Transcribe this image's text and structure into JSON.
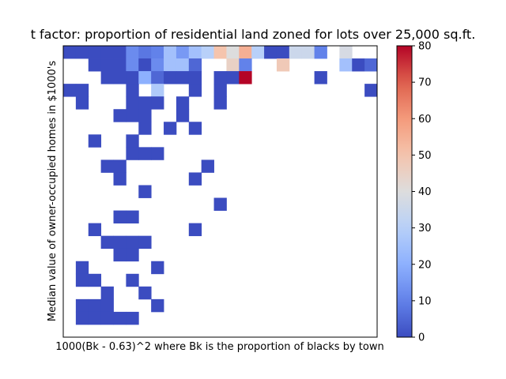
{
  "chart_data": {
    "type": "heatmap",
    "title": "t factor: proportion of residential land zoned for lots over 25,000 sq.ft.",
    "xlabel": "1000(Bk - 0.63)^2 where Bk is the proportion of blacks by town",
    "ylabel": "Median value of owner-occupied homes in $1000's",
    "n_cols": 25,
    "n_rows": 23,
    "vmin": 0,
    "vmax": 80,
    "colormap": "coolwarm",
    "colorbar_ticks": [
      "0",
      "10",
      "20",
      "30",
      "40",
      "50",
      "60",
      "70",
      "80"
    ],
    "cells": [
      [
        0,
        0,
        0
      ],
      [
        0,
        1,
        0
      ],
      [
        0,
        2,
        0
      ],
      [
        0,
        3,
        0
      ],
      [
        0,
        4,
        0
      ],
      [
        0,
        5,
        12
      ],
      [
        0,
        6,
        8
      ],
      [
        0,
        7,
        10
      ],
      [
        0,
        8,
        25
      ],
      [
        0,
        9,
        15
      ],
      [
        0,
        10,
        25
      ],
      [
        0,
        11,
        30
      ],
      [
        0,
        12,
        50
      ],
      [
        0,
        13,
        40
      ],
      [
        0,
        14,
        55
      ],
      [
        0,
        15,
        30
      ],
      [
        0,
        16,
        0
      ],
      [
        0,
        17,
        0
      ],
      [
        0,
        18,
        35
      ],
      [
        0,
        19,
        35
      ],
      [
        0,
        20,
        10
      ],
      [
        0,
        22,
        38
      ],
      [
        1,
        2,
        0
      ],
      [
        1,
        3,
        0
      ],
      [
        1,
        4,
        0
      ],
      [
        1,
        5,
        12
      ],
      [
        1,
        6,
        0
      ],
      [
        1,
        7,
        12
      ],
      [
        1,
        8,
        25
      ],
      [
        1,
        9,
        25
      ],
      [
        1,
        10,
        5
      ],
      [
        1,
        13,
        45
      ],
      [
        1,
        14,
        10
      ],
      [
        1,
        17,
        48
      ],
      [
        1,
        22,
        25
      ],
      [
        1,
        23,
        0
      ],
      [
        1,
        24,
        5
      ],
      [
        2,
        3,
        0
      ],
      [
        2,
        4,
        0
      ],
      [
        2,
        5,
        0
      ],
      [
        2,
        6,
        20
      ],
      [
        2,
        7,
        5
      ],
      [
        2,
        8,
        0
      ],
      [
        2,
        9,
        0
      ],
      [
        2,
        10,
        0
      ],
      [
        2,
        12,
        0
      ],
      [
        2,
        13,
        0
      ],
      [
        2,
        14,
        80
      ],
      [
        2,
        20,
        0
      ],
      [
        3,
        0,
        0
      ],
      [
        3,
        1,
        0
      ],
      [
        3,
        5,
        0
      ],
      [
        3,
        7,
        28
      ],
      [
        3,
        10,
        0
      ],
      [
        3,
        12,
        0
      ],
      [
        3,
        24,
        0
      ],
      [
        4,
        1,
        0
      ],
      [
        4,
        5,
        0
      ],
      [
        4,
        6,
        0
      ],
      [
        4,
        7,
        0
      ],
      [
        4,
        9,
        0
      ],
      [
        4,
        12,
        0
      ],
      [
        5,
        4,
        0
      ],
      [
        5,
        5,
        0
      ],
      [
        5,
        6,
        0
      ],
      [
        5,
        9,
        0
      ],
      [
        6,
        6,
        0
      ],
      [
        6,
        8,
        0
      ],
      [
        6,
        10,
        0
      ],
      [
        7,
        2,
        0
      ],
      [
        7,
        5,
        0
      ],
      [
        8,
        5,
        0
      ],
      [
        8,
        6,
        0
      ],
      [
        8,
        7,
        0
      ],
      [
        9,
        3,
        0
      ],
      [
        9,
        4,
        0
      ],
      [
        9,
        11,
        0
      ],
      [
        10,
        4,
        0
      ],
      [
        10,
        10,
        0
      ],
      [
        11,
        6,
        0
      ],
      [
        12,
        12,
        0
      ],
      [
        13,
        4,
        0
      ],
      [
        13,
        5,
        0
      ],
      [
        14,
        2,
        0
      ],
      [
        14,
        10,
        0
      ],
      [
        15,
        3,
        0
      ],
      [
        15,
        4,
        0
      ],
      [
        15,
        5,
        0
      ],
      [
        15,
        6,
        0
      ],
      [
        16,
        4,
        0
      ],
      [
        16,
        5,
        0
      ],
      [
        17,
        1,
        0
      ],
      [
        17,
        7,
        0
      ],
      [
        18,
        1,
        0
      ],
      [
        18,
        2,
        0
      ],
      [
        18,
        5,
        0
      ],
      [
        19,
        3,
        0
      ],
      [
        19,
        6,
        0
      ],
      [
        20,
        1,
        0
      ],
      [
        20,
        2,
        0
      ],
      [
        20,
        3,
        0
      ],
      [
        20,
        7,
        0
      ],
      [
        21,
        1,
        0
      ],
      [
        21,
        2,
        0
      ],
      [
        21,
        3,
        0
      ],
      [
        21,
        4,
        0
      ],
      [
        21,
        5,
        0
      ]
    ]
  }
}
